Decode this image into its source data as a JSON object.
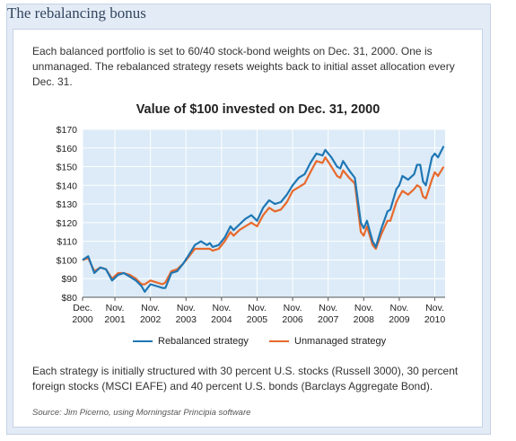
{
  "frame": {
    "title": "The rebalancing bonus"
  },
  "intro": "Each balanced portfolio is set to 60/40 stock-bond weights on Dec. 31, 2000. One is unmanaged. The rebalanced strategy resets weights back to initial asset allocation every Dec. 31.",
  "footer": "Each strategy is initially structured with 30 percent U.S. stocks (Russell 3000), 30 percent foreign stocks (MSCI EAFE) and 40 percent U.S. bonds (Barclays Aggregate Bond).",
  "source": "Source: Jim Picerno, using Morningstar Principia software",
  "chart_data": {
    "type": "line",
    "title": "Value of $100 invested on Dec. 31, 2000",
    "ylim": [
      80,
      170
    ],
    "y_ticks": [
      {
        "value": 80,
        "label": "$80"
      },
      {
        "value": 90,
        "label": "$90"
      },
      {
        "value": 100,
        "label": "$100"
      },
      {
        "value": 110,
        "label": "$110"
      },
      {
        "value": 120,
        "label": "$120"
      },
      {
        "value": 130,
        "label": "$130"
      },
      {
        "value": 140,
        "label": "$140"
      },
      {
        "value": 150,
        "label": "$150"
      },
      {
        "value": 160,
        "label": "$160"
      },
      {
        "value": 170,
        "label": "$170"
      }
    ],
    "x_ticks": [
      {
        "value": 2000.92,
        "line1": "Dec.",
        "line2": "2000"
      },
      {
        "value": 2001.83,
        "line1": "Nov.",
        "line2": "2001"
      },
      {
        "value": 2002.83,
        "line1": "Nov.",
        "line2": "2002"
      },
      {
        "value": 2003.83,
        "line1": "Nov.",
        "line2": "2003"
      },
      {
        "value": 2004.83,
        "line1": "Nov.",
        "line2": "2004"
      },
      {
        "value": 2005.83,
        "line1": "Nov.",
        "line2": "2005"
      },
      {
        "value": 2006.83,
        "line1": "Nov.",
        "line2": "2006"
      },
      {
        "value": 2007.83,
        "line1": "Nov.",
        "line2": "2007"
      },
      {
        "value": 2008.83,
        "line1": "Nov.",
        "line2": "2008"
      },
      {
        "value": 2009.83,
        "line1": "Nov.",
        "line2": "2009"
      },
      {
        "value": 2010.83,
        "line1": "Nov.",
        "line2": "2010"
      }
    ],
    "grid": true,
    "legend_position": "bottom",
    "background_color": "#dcebf7",
    "series": [
      {
        "name": "Rebalanced strategy",
        "color": "#1f77b4",
        "points": [
          [
            2000.92,
            100
          ],
          [
            2001.08,
            102
          ],
          [
            2001.25,
            93
          ],
          [
            2001.42,
            96
          ],
          [
            2001.58,
            95
          ],
          [
            2001.75,
            89
          ],
          [
            2001.92,
            92
          ],
          [
            2002.08,
            93
          ],
          [
            2002.25,
            91
          ],
          [
            2002.42,
            89
          ],
          [
            2002.58,
            86
          ],
          [
            2002.67,
            83
          ],
          [
            2002.83,
            87
          ],
          [
            2003.0,
            86
          ],
          [
            2003.17,
            85
          ],
          [
            2003.25,
            85
          ],
          [
            2003.42,
            93
          ],
          [
            2003.58,
            94
          ],
          [
            2003.75,
            98
          ],
          [
            2003.92,
            103
          ],
          [
            2004.08,
            108
          ],
          [
            2004.25,
            110
          ],
          [
            2004.42,
            108
          ],
          [
            2004.5,
            109
          ],
          [
            2004.58,
            107
          ],
          [
            2004.75,
            108
          ],
          [
            2004.92,
            112
          ],
          [
            2005.08,
            118
          ],
          [
            2005.17,
            116
          ],
          [
            2005.33,
            119
          ],
          [
            2005.5,
            122
          ],
          [
            2005.67,
            124
          ],
          [
            2005.83,
            121
          ],
          [
            2006.0,
            128
          ],
          [
            2006.17,
            132
          ],
          [
            2006.33,
            130
          ],
          [
            2006.5,
            131
          ],
          [
            2006.67,
            135
          ],
          [
            2006.83,
            140
          ],
          [
            2007.0,
            144
          ],
          [
            2007.17,
            146
          ],
          [
            2007.33,
            152
          ],
          [
            2007.5,
            157
          ],
          [
            2007.67,
            156
          ],
          [
            2007.75,
            159
          ],
          [
            2007.92,
            155
          ],
          [
            2008.08,
            150
          ],
          [
            2008.17,
            149
          ],
          [
            2008.25,
            153
          ],
          [
            2008.42,
            148
          ],
          [
            2008.58,
            144
          ],
          [
            2008.75,
            120
          ],
          [
            2008.83,
            117
          ],
          [
            2008.92,
            121
          ],
          [
            2009.08,
            110
          ],
          [
            2009.17,
            107
          ],
          [
            2009.33,
            117
          ],
          [
            2009.5,
            126
          ],
          [
            2009.58,
            127
          ],
          [
            2009.75,
            138
          ],
          [
            2009.83,
            140
          ],
          [
            2009.92,
            145
          ],
          [
            2010.08,
            143
          ],
          [
            2010.25,
            146
          ],
          [
            2010.33,
            151
          ],
          [
            2010.42,
            151
          ],
          [
            2010.5,
            142
          ],
          [
            2010.58,
            140
          ],
          [
            2010.75,
            155
          ],
          [
            2010.83,
            157
          ],
          [
            2010.92,
            155
          ],
          [
            2011.08,
            161
          ]
        ]
      },
      {
        "name": "Unmanaged strategy",
        "color": "#e8692c",
        "points": [
          [
            2000.92,
            100
          ],
          [
            2001.08,
            101
          ],
          [
            2001.25,
            94
          ],
          [
            2001.42,
            96
          ],
          [
            2001.58,
            95
          ],
          [
            2001.75,
            90
          ],
          [
            2001.92,
            93
          ],
          [
            2002.08,
            93
          ],
          [
            2002.25,
            92
          ],
          [
            2002.42,
            90
          ],
          [
            2002.58,
            87
          ],
          [
            2002.67,
            87
          ],
          [
            2002.83,
            89
          ],
          [
            2003.0,
            88
          ],
          [
            2003.17,
            87
          ],
          [
            2003.25,
            88
          ],
          [
            2003.42,
            94
          ],
          [
            2003.58,
            95
          ],
          [
            2003.75,
            98
          ],
          [
            2003.92,
            102
          ],
          [
            2004.08,
            106
          ],
          [
            2004.25,
            106
          ],
          [
            2004.42,
            106
          ],
          [
            2004.5,
            106
          ],
          [
            2004.58,
            105
          ],
          [
            2004.75,
            106
          ],
          [
            2004.92,
            110
          ],
          [
            2005.08,
            115
          ],
          [
            2005.17,
            113
          ],
          [
            2005.33,
            116
          ],
          [
            2005.5,
            118
          ],
          [
            2005.67,
            120
          ],
          [
            2005.83,
            118
          ],
          [
            2006.0,
            124
          ],
          [
            2006.17,
            128
          ],
          [
            2006.33,
            126
          ],
          [
            2006.5,
            127
          ],
          [
            2006.67,
            131
          ],
          [
            2006.83,
            137
          ],
          [
            2007.0,
            139
          ],
          [
            2007.17,
            141
          ],
          [
            2007.33,
            147
          ],
          [
            2007.5,
            153
          ],
          [
            2007.67,
            152
          ],
          [
            2007.75,
            155
          ],
          [
            2007.92,
            150
          ],
          [
            2008.08,
            145
          ],
          [
            2008.17,
            144
          ],
          [
            2008.25,
            148
          ],
          [
            2008.42,
            144
          ],
          [
            2008.58,
            141
          ],
          [
            2008.75,
            115
          ],
          [
            2008.83,
            113
          ],
          [
            2008.92,
            118
          ],
          [
            2009.08,
            108
          ],
          [
            2009.17,
            106
          ],
          [
            2009.33,
            114
          ],
          [
            2009.5,
            121
          ],
          [
            2009.58,
            121
          ],
          [
            2009.75,
            131
          ],
          [
            2009.83,
            134
          ],
          [
            2009.92,
            137
          ],
          [
            2010.08,
            135
          ],
          [
            2010.25,
            138
          ],
          [
            2010.33,
            140
          ],
          [
            2010.42,
            139
          ],
          [
            2010.5,
            134
          ],
          [
            2010.58,
            133
          ],
          [
            2010.75,
            143
          ],
          [
            2010.83,
            147
          ],
          [
            2010.92,
            145
          ],
          [
            2011.08,
            150
          ]
        ]
      }
    ]
  }
}
